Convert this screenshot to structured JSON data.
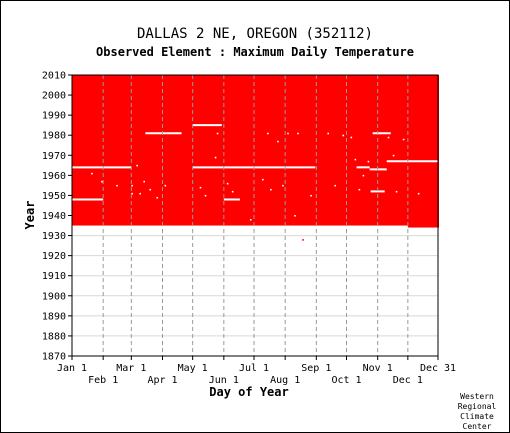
{
  "chart_data": {
    "type": "heatmap",
    "title": "DALLAS 2 NE, OREGON   (352112)",
    "subtitle": "Observed Element : Maximum Daily Temperature",
    "xlabel": "Day of Year",
    "ylabel": "Year",
    "ylim": [
      1870,
      2010
    ],
    "yticks": [
      1870,
      1880,
      1890,
      1900,
      1910,
      1920,
      1930,
      1940,
      1950,
      1960,
      1970,
      1980,
      1990,
      2000,
      2010
    ],
    "xticks_top": [
      {
        "label": "Jan 1",
        "day": 1
      },
      {
        "label": "Mar 1",
        "day": 60
      },
      {
        "label": "May 1",
        "day": 121
      },
      {
        "label": "Jul 1",
        "day": 182
      },
      {
        "label": "Sep 1",
        "day": 244
      },
      {
        "label": "Nov 1",
        "day": 305
      },
      {
        "label": "Dec 31",
        "day": 365
      }
    ],
    "xticks_bottom": [
      {
        "label": "Feb 1",
        "day": 32
      },
      {
        "label": "Apr 1",
        "day": 91
      },
      {
        "label": "Jun 1",
        "day": 152
      },
      {
        "label": "Aug 1",
        "day": 213
      },
      {
        "label": "Oct 1",
        "day": 274
      },
      {
        "label": "Dec 1",
        "day": 335
      }
    ],
    "month_gridlines": [
      32,
      60,
      91,
      121,
      152,
      182,
      213,
      244,
      274,
      305,
      335
    ],
    "data_color": "#ff0000",
    "blocks": [
      {
        "day_start": 1,
        "day_end": 335,
        "year_start": 1935,
        "year_end": 2010
      },
      {
        "day_start": 335,
        "day_end": 365,
        "year_start": 1934,
        "year_end": 2010
      }
    ],
    "missing_lines": [
      {
        "day_start": 1,
        "day_end": 60,
        "year": 1964
      },
      {
        "day_start": 1,
        "day_end": 32,
        "year": 1948
      },
      {
        "day_start": 121,
        "day_end": 150,
        "year": 1985
      },
      {
        "day_start": 121,
        "day_end": 243,
        "year": 1964
      },
      {
        "day_start": 152,
        "day_end": 168,
        "year": 1948
      },
      {
        "day_start": 74,
        "day_end": 110,
        "year": 1981
      },
      {
        "day_start": 284,
        "day_end": 297,
        "year": 1964
      },
      {
        "day_start": 297,
        "day_end": 314,
        "year": 1963
      },
      {
        "day_start": 314,
        "day_end": 365,
        "year": 1967
      },
      {
        "day_start": 300,
        "day_end": 318,
        "year": 1981
      },
      {
        "day_start": 298,
        "day_end": 312,
        "year": 1952
      }
    ],
    "missing_days": [
      {
        "day": 60,
        "year": 1951
      },
      {
        "day": 60,
        "year": 1955
      },
      {
        "day": 65,
        "year": 1965
      },
      {
        "day": 68,
        "year": 1951
      },
      {
        "day": 72,
        "year": 1957
      },
      {
        "day": 78,
        "year": 1953
      },
      {
        "day": 85,
        "year": 1949
      },
      {
        "day": 93,
        "year": 1955
      },
      {
        "day": 128,
        "year": 1954
      },
      {
        "day": 133,
        "year": 1950
      },
      {
        "day": 143,
        "year": 1969
      },
      {
        "day": 145,
        "year": 1981
      },
      {
        "day": 155,
        "year": 1956
      },
      {
        "day": 160,
        "year": 1952
      },
      {
        "day": 178,
        "year": 1938
      },
      {
        "day": 190,
        "year": 1958
      },
      {
        "day": 195,
        "year": 1981
      },
      {
        "day": 198,
        "year": 1953
      },
      {
        "day": 205,
        "year": 1977
      },
      {
        "day": 210,
        "year": 1955
      },
      {
        "day": 215,
        "year": 1981
      },
      {
        "day": 222,
        "year": 1940
      },
      {
        "day": 225,
        "year": 1981
      },
      {
        "day": 230,
        "year": 1928
      },
      {
        "day": 238,
        "year": 1950
      },
      {
        "day": 255,
        "year": 1981
      },
      {
        "day": 262,
        "year": 1955
      },
      {
        "day": 270,
        "year": 1980
      },
      {
        "day": 278,
        "year": 1979
      },
      {
        "day": 282,
        "year": 1968
      },
      {
        "day": 286,
        "year": 1953
      },
      {
        "day": 290,
        "year": 1960
      },
      {
        "day": 295,
        "year": 1967
      },
      {
        "day": 315,
        "year": 1979
      },
      {
        "day": 320,
        "year": 1970
      },
      {
        "day": 323,
        "year": 1952
      },
      {
        "day": 330,
        "year": 1978
      },
      {
        "day": 345,
        "year": 1951
      },
      {
        "day": 20,
        "year": 1961
      },
      {
        "day": 30,
        "year": 1957
      },
      {
        "day": 45,
        "year": 1955
      }
    ]
  },
  "credit_lines": [
    "Western",
    "Regional",
    "Climate",
    "Center"
  ]
}
